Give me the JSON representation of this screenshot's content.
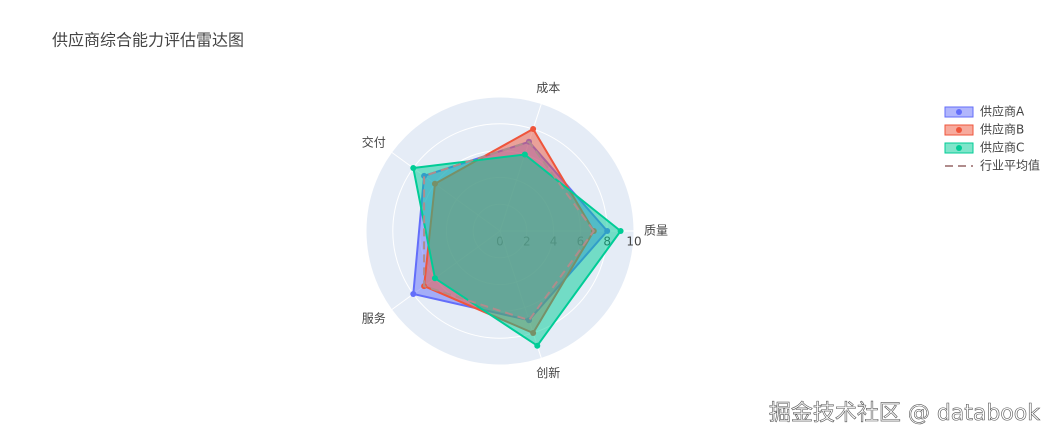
{
  "chart_data": {
    "type": "radar",
    "title": "供应商综合能力评估雷达图",
    "categories": [
      "质量",
      "成本",
      "交付",
      "服务",
      "创新"
    ],
    "rlim": [
      0,
      10
    ],
    "rticks": [
      0,
      2,
      4,
      6,
      8,
      10
    ],
    "series": [
      {
        "name": "供应商A",
        "color": "#636efa",
        "values": [
          8,
          7,
          7,
          8,
          7
        ]
      },
      {
        "name": "供应商B",
        "color": "#ef553b",
        "values": [
          7,
          8,
          6,
          7,
          8
        ]
      },
      {
        "name": "供应商C",
        "color": "#00cc96",
        "values": [
          9,
          6,
          8,
          6,
          9
        ]
      },
      {
        "name": "行业平均值",
        "color": "#b08c8c",
        "dash": true,
        "values": [
          7,
          7,
          7,
          7,
          7
        ]
      }
    ],
    "watermark": "掘金技术社区 @ databook"
  }
}
